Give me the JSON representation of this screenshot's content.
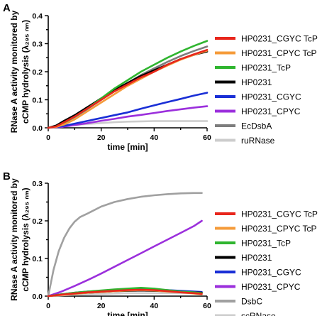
{
  "chart_data": [
    {
      "type": "line",
      "panel": "A",
      "xlabel": "time [min]",
      "ylabel_line1": "RNase A activity monitored by",
      "ylabel_line2": "cCMP hydrolysis (λ₂₉₅ ₙₘ)",
      "xlim": [
        0,
        60
      ],
      "ylim": [
        0,
        0.4
      ],
      "xticks": [
        "0",
        "20",
        "40",
        "60"
      ],
      "yticks": [
        "0.0",
        "0.1",
        "0.2",
        "0.3",
        "0.4"
      ],
      "legend_position": "right",
      "series": [
        {
          "name": "HP0231_CGYC TcP",
          "color": "#e8261c",
          "x": [
            0,
            3,
            6,
            10,
            15,
            20,
            25,
            30,
            35,
            40,
            45,
            50,
            55,
            60
          ],
          "y": [
            0,
            0.005,
            0.02,
            0.04,
            0.07,
            0.1,
            0.13,
            0.155,
            0.18,
            0.2,
            0.225,
            0.245,
            0.262,
            0.278
          ]
        },
        {
          "name": "HP0231_CPYC TcP",
          "color": "#f59b3a",
          "x": [
            0,
            3,
            6,
            10,
            15,
            20,
            25,
            30,
            35,
            40,
            45,
            50,
            55,
            60
          ],
          "y": [
            0,
            0.003,
            0.012,
            0.03,
            0.06,
            0.09,
            0.12,
            0.15,
            0.175,
            0.2,
            0.222,
            0.243,
            0.26,
            0.275
          ]
        },
        {
          "name": "HP0231_TcP",
          "color": "#2fb52f",
          "x": [
            0,
            3,
            6,
            10,
            15,
            20,
            25,
            30,
            35,
            40,
            45,
            50,
            55,
            60
          ],
          "y": [
            0,
            0.005,
            0.018,
            0.04,
            0.07,
            0.105,
            0.14,
            0.17,
            0.2,
            0.225,
            0.25,
            0.272,
            0.292,
            0.31
          ]
        },
        {
          "name": "HP0231",
          "color": "#000000",
          "x": [
            0,
            3,
            6,
            10,
            15,
            20,
            25,
            30,
            35,
            40,
            45,
            50,
            55,
            60
          ],
          "y": [
            0,
            0.008,
            0.025,
            0.045,
            0.075,
            0.105,
            0.135,
            0.16,
            0.185,
            0.205,
            0.225,
            0.245,
            0.26,
            0.272
          ]
        },
        {
          "name": "HP0231_CGYC",
          "color": "#1a2fd6",
          "x": [
            0,
            5,
            10,
            15,
            20,
            25,
            30,
            35,
            40,
            45,
            50,
            55,
            60
          ],
          "y": [
            0,
            0.005,
            0.015,
            0.025,
            0.035,
            0.045,
            0.055,
            0.068,
            0.08,
            0.092,
            0.103,
            0.115,
            0.125
          ]
        },
        {
          "name": "HP0231_CPYC",
          "color": "#9b2fdc",
          "x": [
            0,
            5,
            10,
            15,
            20,
            25,
            30,
            35,
            40,
            45,
            50,
            55,
            60
          ],
          "y": [
            0,
            0.003,
            0.01,
            0.017,
            0.025,
            0.032,
            0.04,
            0.046,
            0.053,
            0.06,
            0.066,
            0.072,
            0.077
          ]
        },
        {
          "name": "EcDsbA",
          "color": "#7d7d7d",
          "x": [
            0,
            3,
            6,
            10,
            15,
            20,
            25,
            30,
            35,
            40,
            45,
            50,
            55,
            60
          ],
          "y": [
            0,
            0.005,
            0.018,
            0.038,
            0.068,
            0.1,
            0.132,
            0.16,
            0.188,
            0.212,
            0.235,
            0.256,
            0.274,
            0.29
          ]
        },
        {
          "name": "ruRNase",
          "color": "#cccccc",
          "x": [
            0,
            5,
            10,
            15,
            20,
            25,
            30,
            35,
            40,
            45,
            50,
            55,
            60
          ],
          "y": [
            0,
            0.005,
            0.01,
            0.014,
            0.017,
            0.02,
            0.022,
            0.023,
            0.024,
            0.024,
            0.024,
            0.024,
            0.024
          ]
        }
      ]
    },
    {
      "type": "line",
      "panel": "B",
      "xlabel": "time [min]",
      "ylabel_line1": "RNase A activity monitored by",
      "ylabel_line2": "cCMP hydrolysis (λ₂₉₅ ₙₘ)",
      "xlim": [
        0,
        60
      ],
      "ylim": [
        0,
        0.3
      ],
      "xticks": [
        "0",
        "20",
        "40",
        "60"
      ],
      "yticks": [
        "0.0",
        "0.1",
        "0.2",
        "0.3"
      ],
      "legend_position": "right",
      "series": [
        {
          "name": "HP0231_CGYC TcP",
          "color": "#e8261c",
          "x": [
            0,
            5,
            10,
            15,
            20,
            25,
            30,
            35,
            40,
            45,
            50,
            55,
            58
          ],
          "y": [
            0,
            0.004,
            0.007,
            0.01,
            0.012,
            0.014,
            0.016,
            0.017,
            0.016,
            0.013,
            0.01,
            0.008,
            0.006
          ]
        },
        {
          "name": "HP0231_CPYC TcP",
          "color": "#f59b3a",
          "x": [
            0,
            5,
            10,
            15,
            20,
            25,
            30,
            35,
            40,
            45,
            50,
            55,
            58
          ],
          "y": [
            0,
            0.003,
            0.006,
            0.009,
            0.011,
            0.013,
            0.015,
            0.016,
            0.015,
            0.012,
            0.01,
            0.007,
            0.005
          ]
        },
        {
          "name": "HP0231_TcP",
          "color": "#2fb52f",
          "x": [
            0,
            5,
            10,
            15,
            20,
            25,
            30,
            35,
            40,
            45,
            50,
            55,
            58
          ],
          "y": [
            0,
            0.005,
            0.009,
            0.012,
            0.015,
            0.018,
            0.02,
            0.022,
            0.02,
            0.016,
            0.012,
            0.01,
            0.008
          ]
        },
        {
          "name": "HP0231",
          "color": "#000000",
          "x": [
            0,
            5,
            10,
            15,
            20,
            25,
            30,
            35,
            40,
            45,
            50,
            55,
            58
          ],
          "y": [
            0,
            0.004,
            0.007,
            0.009,
            0.011,
            0.013,
            0.014,
            0.015,
            0.014,
            0.013,
            0.011,
            0.01,
            0.009
          ]
        },
        {
          "name": "HP0231_CGYC",
          "color": "#1a2fd6",
          "x": [
            0,
            5,
            10,
            15,
            20,
            25,
            30,
            35,
            40,
            45,
            50,
            55,
            58
          ],
          "y": [
            0,
            0.005,
            0.009,
            0.012,
            0.014,
            0.016,
            0.018,
            0.019,
            0.018,
            0.016,
            0.014,
            0.012,
            0.011
          ]
        },
        {
          "name": "HP0231_CPYC",
          "color": "#9b2fdc",
          "x": [
            0,
            5,
            10,
            15,
            20,
            25,
            30,
            35,
            40,
            45,
            50,
            55,
            58
          ],
          "y": [
            0,
            0.012,
            0.027,
            0.043,
            0.06,
            0.078,
            0.096,
            0.114,
            0.132,
            0.15,
            0.168,
            0.186,
            0.2
          ]
        },
        {
          "name": "DsbC",
          "color": "#a0a0a0",
          "x": [
            0,
            2,
            4,
            6,
            8,
            10,
            12,
            15,
            20,
            25,
            30,
            35,
            40,
            45,
            50,
            55,
            58
          ],
          "y": [
            0,
            0.07,
            0.12,
            0.155,
            0.18,
            0.198,
            0.21,
            0.22,
            0.238,
            0.25,
            0.258,
            0.264,
            0.268,
            0.271,
            0.273,
            0.274,
            0.274
          ]
        },
        {
          "name": "scRNase",
          "color": "#cccccc",
          "x": [
            0,
            5,
            10,
            15,
            20,
            25,
            30,
            35,
            40,
            45,
            50,
            55,
            58
          ],
          "y": [
            0,
            0.002,
            0.004,
            0.005,
            0.006,
            0.007,
            0.008,
            0.008,
            0.008,
            0.008,
            0.008,
            0.008,
            0.008
          ]
        }
      ]
    }
  ]
}
